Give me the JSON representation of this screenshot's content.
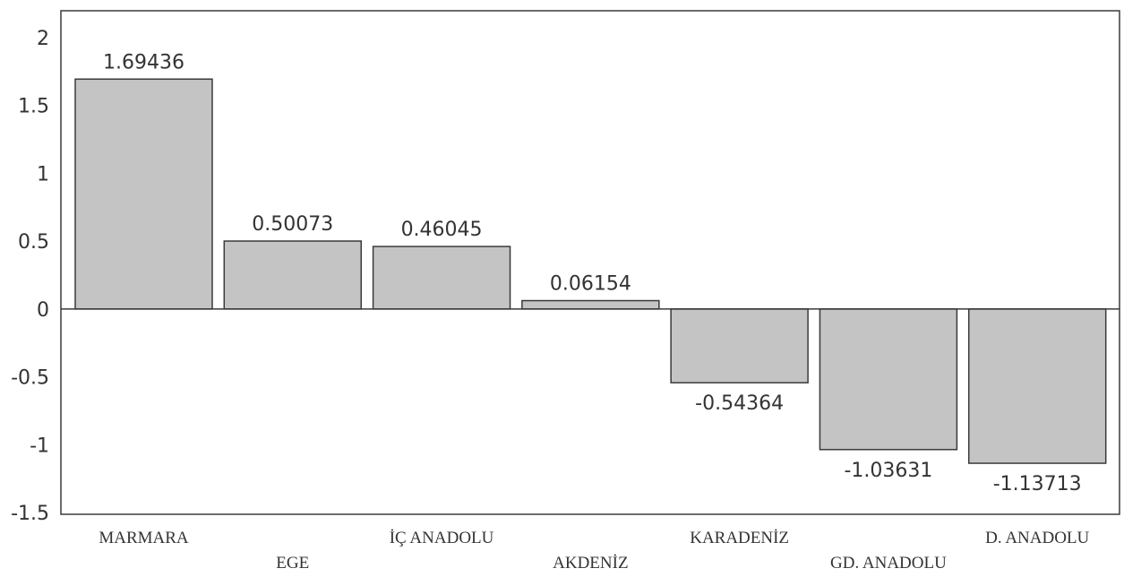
{
  "chart_data": {
    "type": "bar",
    "categories": [
      "MARMARA",
      "EGE",
      "İÇ ANADOLU",
      "AKDENİZ",
      "KARADENİZ",
      "GD. ANADOLU",
      "D. ANADOLU"
    ],
    "values": [
      1.69436,
      0.50073,
      0.46045,
      0.06154,
      -0.54364,
      -1.03631,
      -1.13713
    ],
    "data_labels": [
      "1.69436",
      "0.50073",
      "0.46045",
      "0.06154",
      "-0.54364",
      "-1.03631",
      "-1.13713"
    ],
    "y_ticks": [
      "2",
      "1.5",
      "1",
      "0.5",
      "0",
      "-0.5",
      "-1",
      "-1.5"
    ],
    "ylim": [
      -1.5,
      2
    ],
    "title": "",
    "xlabel": "",
    "ylabel": "",
    "grid": false,
    "bar_color": "#c4c4c4",
    "bar_stroke": "#3a3a3a"
  }
}
